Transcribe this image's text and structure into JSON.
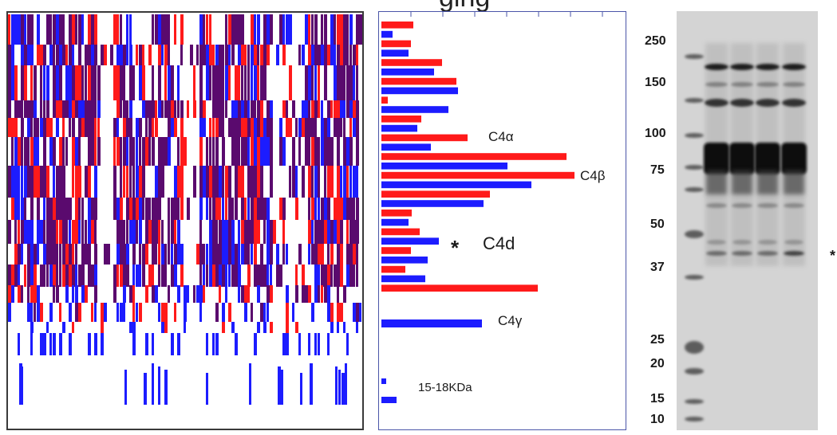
{
  "top_fragment": "ging",
  "colors": {
    "red": "#ff1a1a",
    "blue": "#1c1cff",
    "purple": "#5a0a6e",
    "panel_border": "#3a3a3a",
    "bar_border": "#4a55a8",
    "gel_bg": "#d4d4d4"
  },
  "bar_labels": {
    "c4a": "C4α",
    "c4b": "C4β",
    "c4d": "C4d",
    "asterisk": "*",
    "c4g": "C4γ",
    "small": "15-18KDa"
  },
  "gel": {
    "markers": [
      "250",
      "150",
      "100",
      "75",
      "50",
      "37",
      "25",
      "20",
      "15",
      "10"
    ],
    "asterisk": "*"
  }
}
